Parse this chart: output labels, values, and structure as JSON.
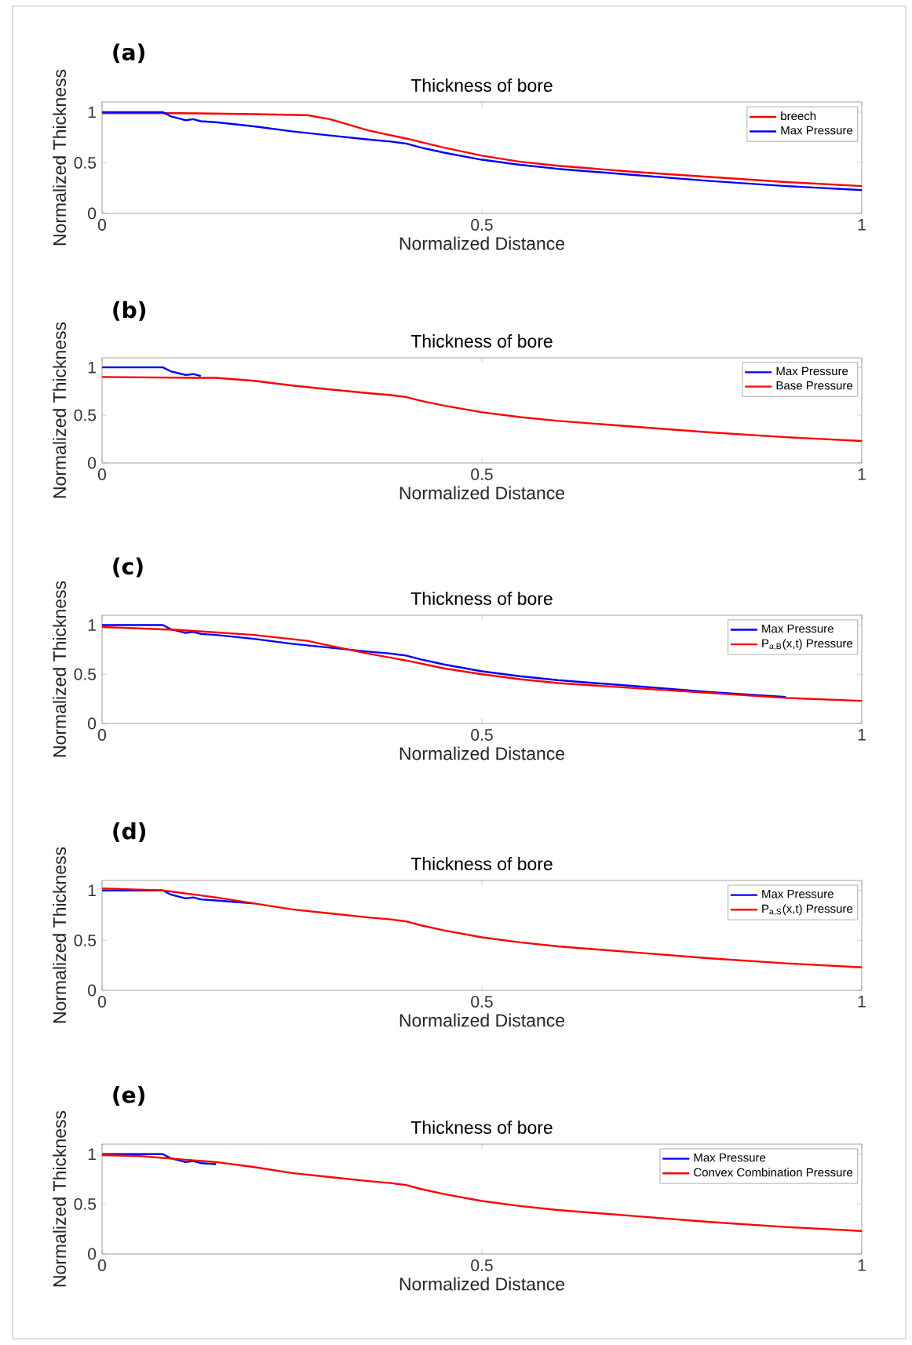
{
  "chart_data": [
    {
      "type": "line",
      "title": "Thickness of bore",
      "xlabel": "Normalized Distance",
      "ylabel": "Normalized Thickness",
      "annotations": [
        "(a)"
      ],
      "xlim": [
        0,
        1
      ],
      "ylim": [
        0,
        1.1
      ],
      "xticks": [
        0,
        0.5,
        1
      ],
      "yticks": [
        0,
        0.5,
        1
      ],
      "legend": "top right",
      "series": [
        {
          "name": "breech",
          "color": "#ff0000",
          "x": [
            0,
            0.1,
            0.2,
            0.27,
            0.3,
            0.35,
            0.4,
            0.45,
            0.5,
            0.55,
            0.6,
            0.7,
            0.8,
            0.9,
            1
          ],
          "values": [
            0.99,
            0.99,
            0.98,
            0.97,
            0.93,
            0.82,
            0.74,
            0.65,
            0.57,
            0.51,
            0.47,
            0.41,
            0.36,
            0.31,
            0.27
          ]
        },
        {
          "name": "Max Pressure",
          "color": "#0000ff",
          "x": [
            0,
            0.08,
            0.09,
            0.1,
            0.11,
            0.12,
            0.13,
            0.15,
            0.2,
            0.25,
            0.3,
            0.35,
            0.38,
            0.4,
            0.42,
            0.45,
            0.5,
            0.55,
            0.6,
            0.7,
            0.8,
            0.9,
            1
          ],
          "values": [
            1,
            1,
            0.96,
            0.94,
            0.92,
            0.93,
            0.91,
            0.9,
            0.86,
            0.81,
            0.77,
            0.73,
            0.71,
            0.69,
            0.65,
            0.6,
            0.53,
            0.48,
            0.44,
            0.38,
            0.32,
            0.27,
            0.23
          ]
        }
      ]
    },
    {
      "type": "line",
      "title": "Thickness of bore",
      "xlabel": "Normalized Distance",
      "ylabel": "Normalized Thickness",
      "annotations": [
        "(b)"
      ],
      "xlim": [
        0,
        1
      ],
      "ylim": [
        0,
        1.1
      ],
      "xticks": [
        0,
        0.5,
        1
      ],
      "yticks": [
        0,
        0.5,
        1
      ],
      "legend": "top right",
      "series": [
        {
          "name": "Max Pressure",
          "color": "#0000ff",
          "x": [
            0,
            0.08,
            0.09,
            0.1,
            0.11,
            0.12,
            0.13
          ],
          "values": [
            1,
            1,
            0.96,
            0.94,
            0.92,
            0.93,
            0.91
          ]
        },
        {
          "name": "Base Pressure",
          "color": "#ff0000",
          "x": [
            0,
            0.12,
            0.15,
            0.2,
            0.25,
            0.3,
            0.35,
            0.38,
            0.4,
            0.42,
            0.45,
            0.5,
            0.55,
            0.6,
            0.7,
            0.8,
            0.9,
            1
          ],
          "values": [
            0.9,
            0.89,
            0.89,
            0.86,
            0.81,
            0.77,
            0.73,
            0.71,
            0.69,
            0.65,
            0.6,
            0.53,
            0.48,
            0.44,
            0.38,
            0.32,
            0.27,
            0.23
          ]
        }
      ]
    },
    {
      "type": "line",
      "title": "Thickness of bore",
      "xlabel": "Normalized Distance",
      "ylabel": "Normalized Thickness",
      "annotations": [
        "(c)"
      ],
      "xlim": [
        0,
        1
      ],
      "ylim": [
        0,
        1.1
      ],
      "xticks": [
        0,
        0.5,
        1
      ],
      "yticks": [
        0,
        0.5,
        1
      ],
      "legend": "top right",
      "series": [
        {
          "name": "Max Pressure",
          "color": "#0000ff",
          "x": [
            0,
            0.08,
            0.09,
            0.1,
            0.11,
            0.12,
            0.13,
            0.15,
            0.2,
            0.25,
            0.3,
            0.35,
            0.38,
            0.4,
            0.42,
            0.45,
            0.5,
            0.55,
            0.6,
            0.7,
            0.8,
            0.9
          ],
          "values": [
            1,
            1,
            0.96,
            0.94,
            0.92,
            0.93,
            0.91,
            0.9,
            0.86,
            0.81,
            0.77,
            0.73,
            0.71,
            0.69,
            0.65,
            0.6,
            0.53,
            0.48,
            0.44,
            0.38,
            0.32,
            0.27
          ]
        },
        {
          "name": "P$_{a,B}$(x,t) Pressure",
          "color": "#ff0000",
          "x": [
            0,
            0.1,
            0.2,
            0.27,
            0.3,
            0.35,
            0.4,
            0.45,
            0.5,
            0.55,
            0.6,
            0.7,
            0.8,
            0.9,
            1
          ],
          "values": [
            0.98,
            0.95,
            0.9,
            0.84,
            0.79,
            0.71,
            0.64,
            0.56,
            0.5,
            0.45,
            0.41,
            0.36,
            0.31,
            0.26,
            0.23
          ]
        }
      ]
    },
    {
      "type": "line",
      "title": "Thickness of bore",
      "xlabel": "Normalized Distance",
      "ylabel": "Normalized Thickness",
      "annotations": [
        "(d)"
      ],
      "xlim": [
        0,
        1
      ],
      "ylim": [
        0,
        1.1
      ],
      "xticks": [
        0,
        0.5,
        1
      ],
      "yticks": [
        0,
        0.5,
        1
      ],
      "legend": "top right",
      "series": [
        {
          "name": "Max Pressure",
          "color": "#0000ff",
          "x": [
            0,
            0.08,
            0.09,
            0.1,
            0.11,
            0.12,
            0.13,
            0.15,
            0.2
          ],
          "values": [
            1,
            1,
            0.96,
            0.94,
            0.92,
            0.93,
            0.91,
            0.9,
            0.87
          ]
        },
        {
          "name": "P$_{a,S}$(x,t) Pressure",
          "color": "#ff0000",
          "x": [
            0,
            0.08,
            0.1,
            0.15,
            0.2,
            0.25,
            0.3,
            0.35,
            0.38,
            0.4,
            0.42,
            0.45,
            0.5,
            0.55,
            0.6,
            0.7,
            0.8,
            0.9,
            1
          ],
          "values": [
            1.02,
            1,
            0.98,
            0.93,
            0.87,
            0.81,
            0.77,
            0.73,
            0.71,
            0.69,
            0.65,
            0.6,
            0.53,
            0.48,
            0.44,
            0.38,
            0.32,
            0.27,
            0.23
          ]
        }
      ]
    },
    {
      "type": "line",
      "title": "Thickness of bore",
      "xlabel": "Normalized Distance",
      "ylabel": "Normalized Thickness",
      "annotations": [
        "(e)"
      ],
      "xlim": [
        0,
        1
      ],
      "ylim": [
        0,
        1.1
      ],
      "xticks": [
        0,
        0.5,
        1
      ],
      "yticks": [
        0,
        0.5,
        1
      ],
      "legend": "top right",
      "series": [
        {
          "name": "Max Pressure",
          "color": "#0000ff",
          "x": [
            0,
            0.08,
            0.09,
            0.1,
            0.11,
            0.12,
            0.13,
            0.15
          ],
          "values": [
            1,
            1,
            0.96,
            0.94,
            0.92,
            0.93,
            0.91,
            0.9
          ]
        },
        {
          "name": "Convex Combination Pressure",
          "color": "#ff0000",
          "x": [
            0,
            0.05,
            0.1,
            0.15,
            0.2,
            0.25,
            0.3,
            0.35,
            0.38,
            0.4,
            0.42,
            0.45,
            0.5,
            0.55,
            0.6,
            0.7,
            0.8,
            0.9,
            1
          ],
          "values": [
            0.99,
            0.98,
            0.95,
            0.92,
            0.87,
            0.81,
            0.77,
            0.73,
            0.71,
            0.69,
            0.65,
            0.6,
            0.53,
            0.48,
            0.44,
            0.38,
            0.32,
            0.27,
            0.23
          ]
        }
      ]
    }
  ]
}
